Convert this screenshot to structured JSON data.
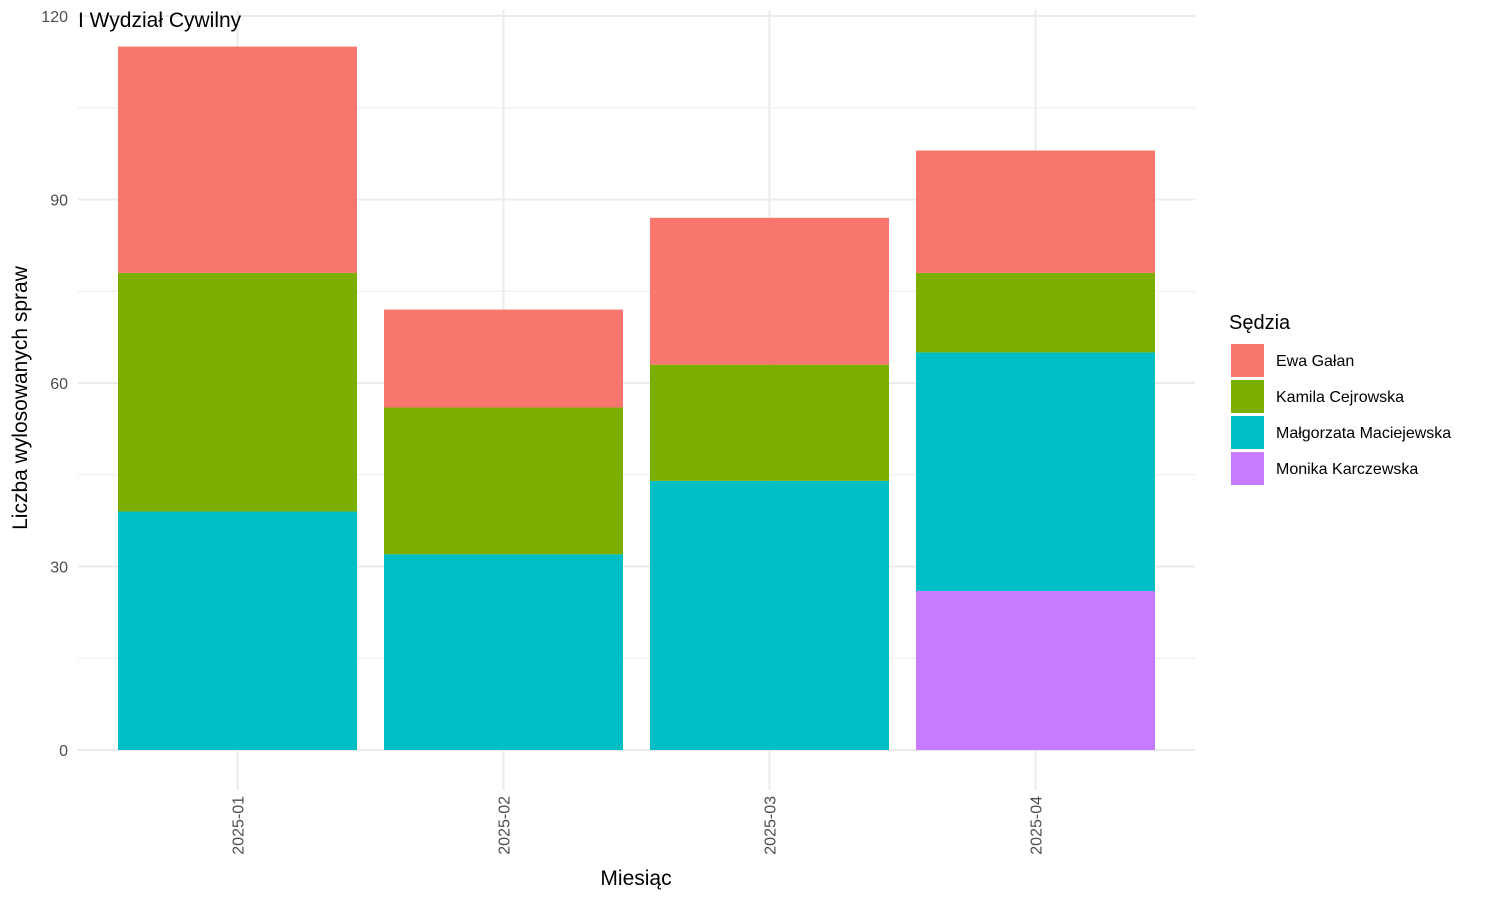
{
  "chart_data": {
    "type": "bar",
    "stacked": true,
    "title": "I Wydział Cywilny",
    "xlabel": "Miesiąc",
    "ylabel": "Liczba wylosowanych spraw",
    "categories": [
      "2025-01",
      "2025-02",
      "2025-03",
      "2025-04"
    ],
    "ylim": [
      0,
      120
    ],
    "yticks": [
      0,
      30,
      60,
      90,
      120
    ],
    "grid": true,
    "legend": {
      "title": "Sędzia",
      "position": "right"
    },
    "series": [
      {
        "name": "Ewa Gałan",
        "color": "#F8766D",
        "values": [
          37,
          16,
          24,
          20
        ]
      },
      {
        "name": "Kamila Cejrowska",
        "color": "#7CAE00",
        "values": [
          39,
          24,
          19,
          13
        ]
      },
      {
        "name": "Małgorzata Maciejewska",
        "color": "#00BFC4",
        "values": [
          39,
          32,
          44,
          39
        ]
      },
      {
        "name": "Monika Karczewska",
        "color": "#C77CFF",
        "values": [
          0,
          0,
          0,
          26
        ]
      }
    ]
  }
}
